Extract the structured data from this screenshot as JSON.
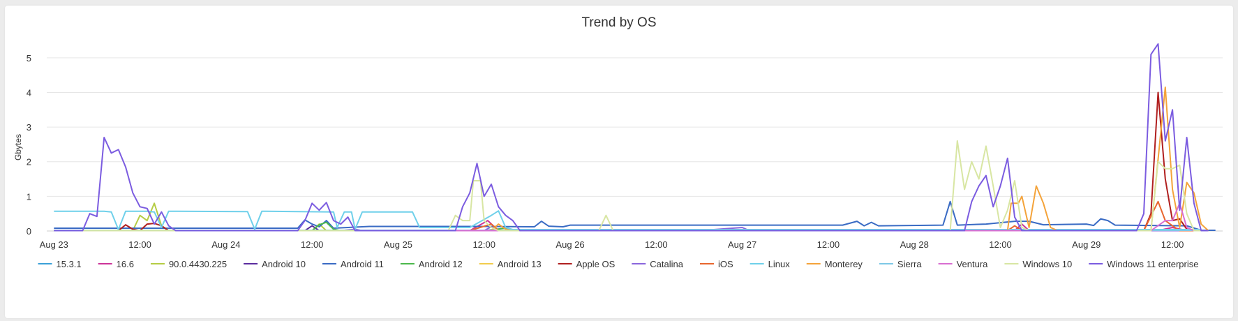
{
  "chart_data": {
    "type": "line",
    "title": "Trend by OS",
    "ylabel": "Gbytes",
    "xlabel": "",
    "ylim": [
      0,
      5.5
    ],
    "yticks": [
      0,
      1,
      2,
      3,
      4,
      5
    ],
    "x_unit": "hours since Aug 23 00:00",
    "x_ticks": [
      {
        "x": 0,
        "label": "Aug 23"
      },
      {
        "x": 12,
        "label": "12:00"
      },
      {
        "x": 24,
        "label": "Aug 24"
      },
      {
        "x": 36,
        "label": "12:00"
      },
      {
        "x": 48,
        "label": "Aug 25"
      },
      {
        "x": 60,
        "label": "12:00"
      },
      {
        "x": 72,
        "label": "Aug 26"
      },
      {
        "x": 84,
        "label": "12:00"
      },
      {
        "x": 96,
        "label": "Aug 27"
      },
      {
        "x": 108,
        "label": "12:00"
      },
      {
        "x": 120,
        "label": "Aug 28"
      },
      {
        "x": 132,
        "label": "12:00"
      },
      {
        "x": 144,
        "label": "Aug 29"
      },
      {
        "x": 156,
        "label": "12:00"
      }
    ],
    "xlim": [
      -1,
      163
    ],
    "grid": true,
    "legend_position": "bottom",
    "series": [
      {
        "name": "15.3.1",
        "color": "#3ba0d8",
        "points": [
          [
            0,
            0.02
          ],
          [
            40,
            0.02
          ],
          [
            80,
            0.02
          ],
          [
            120,
            0.02
          ],
          [
            160,
            0.02
          ]
        ]
      },
      {
        "name": "16.6",
        "color": "#cc3399",
        "points": [
          [
            0,
            0.01
          ],
          [
            58,
            0.01
          ],
          [
            60.5,
            0.3
          ],
          [
            62,
            0.01
          ],
          [
            134,
            0.01
          ],
          [
            135,
            0.2
          ],
          [
            136,
            0.01
          ],
          [
            154,
            0.01
          ],
          [
            156,
            0.1
          ],
          [
            158,
            0.01
          ],
          [
            160,
            0.01
          ]
        ]
      },
      {
        "name": "90.0.4430.225",
        "color": "#b5cc44",
        "points": [
          [
            0,
            0.01
          ],
          [
            11,
            0.01
          ],
          [
            12,
            0.45
          ],
          [
            13,
            0.3
          ],
          [
            14,
            0.8
          ],
          [
            15,
            0.15
          ],
          [
            16,
            0.01
          ],
          [
            36,
            0.01
          ],
          [
            37,
            0.2
          ],
          [
            38,
            0.01
          ],
          [
            160,
            0.01
          ]
        ]
      },
      {
        "name": "Android 10",
        "color": "#5a2c9e",
        "points": [
          [
            0,
            0.01
          ],
          [
            35,
            0.01
          ],
          [
            36,
            0.15
          ],
          [
            37,
            0.01
          ],
          [
            160,
            0.01
          ]
        ]
      },
      {
        "name": "Android 11",
        "color": "#3a6bc4",
        "points": [
          [
            0,
            0.08
          ],
          [
            20,
            0.08
          ],
          [
            34,
            0.08
          ],
          [
            35,
            0.32
          ],
          [
            36,
            0.2
          ],
          [
            37,
            0.12
          ],
          [
            38,
            0.3
          ],
          [
            39,
            0.08
          ],
          [
            44,
            0.13
          ],
          [
            60,
            0.13
          ],
          [
            67,
            0.12
          ],
          [
            68,
            0.28
          ],
          [
            69,
            0.14
          ],
          [
            71,
            0.12
          ],
          [
            72,
            0.17
          ],
          [
            100,
            0.17
          ],
          [
            110,
            0.17
          ],
          [
            112,
            0.28
          ],
          [
            113,
            0.15
          ],
          [
            114,
            0.25
          ],
          [
            115,
            0.15
          ],
          [
            124,
            0.17
          ],
          [
            125,
            0.85
          ],
          [
            126,
            0.17
          ],
          [
            130,
            0.2
          ],
          [
            134,
            0.28
          ],
          [
            136,
            0.28
          ],
          [
            138,
            0.18
          ],
          [
            144,
            0.2
          ],
          [
            145,
            0.16
          ],
          [
            146,
            0.35
          ],
          [
            147,
            0.3
          ],
          [
            148,
            0.17
          ],
          [
            158,
            0.15
          ],
          [
            160,
            0.02
          ],
          [
            162,
            0.02
          ]
        ]
      },
      {
        "name": "Android 12",
        "color": "#4cb84c",
        "points": [
          [
            0,
            0.01
          ],
          [
            36,
            0.01
          ],
          [
            37,
            0.18
          ],
          [
            38,
            0.25
          ],
          [
            39,
            0.05
          ],
          [
            40,
            0.01
          ],
          [
            60,
            0.01
          ],
          [
            63,
            0.08
          ],
          [
            64,
            0.01
          ],
          [
            160,
            0.01
          ]
        ]
      },
      {
        "name": "Android 13",
        "color": "#f2cc4d",
        "points": [
          [
            0,
            0.01
          ],
          [
            160,
            0.01
          ]
        ]
      },
      {
        "name": "Apple OS",
        "color": "#b01f1f",
        "points": [
          [
            0,
            0.01
          ],
          [
            9,
            0.01
          ],
          [
            10,
            0.18
          ],
          [
            11,
            0.05
          ],
          [
            12,
            0.01
          ],
          [
            13,
            0.2
          ],
          [
            14,
            0.22
          ],
          [
            15,
            0.15
          ],
          [
            16,
            0.01
          ],
          [
            152,
            0.01
          ],
          [
            153,
            0.5
          ],
          [
            154,
            4.0
          ],
          [
            155,
            1.5
          ],
          [
            156,
            0.3
          ],
          [
            157,
            0.35
          ],
          [
            158,
            0.05
          ],
          [
            159,
            0.01
          ],
          [
            160,
            0.01
          ]
        ]
      },
      {
        "name": "Catalina",
        "color": "#8a66dd",
        "points": [
          [
            0,
            0.01
          ],
          [
            40,
            0.01
          ],
          [
            42,
            0.05
          ],
          [
            43,
            0.01
          ],
          [
            60,
            0.01
          ],
          [
            61,
            0.12
          ],
          [
            62,
            0.01
          ],
          [
            90,
            0.01
          ],
          [
            96,
            0.1
          ],
          [
            97,
            0.01
          ],
          [
            160,
            0.01
          ]
        ]
      },
      {
        "name": "iOS",
        "color": "#e8662e",
        "points": [
          [
            0,
            0.01
          ],
          [
            58,
            0.01
          ],
          [
            61,
            0.2
          ],
          [
            62,
            0.01
          ],
          [
            133,
            0.01
          ],
          [
            134,
            0.15
          ],
          [
            135,
            0.01
          ],
          [
            152,
            0.01
          ],
          [
            154,
            0.85
          ],
          [
            155,
            0.3
          ],
          [
            156,
            0.15
          ],
          [
            157,
            0.01
          ],
          [
            160,
            0.01
          ]
        ]
      },
      {
        "name": "Linux",
        "color": "#6fd0ea",
        "points": [
          [
            0,
            0.57
          ],
          [
            3,
            0.57
          ],
          [
            7,
            0.57
          ],
          [
            8,
            0.55
          ],
          [
            9,
            0.04
          ],
          [
            10,
            0.57
          ],
          [
            13,
            0.57
          ],
          [
            14,
            0.55
          ],
          [
            15,
            0.1
          ],
          [
            16,
            0.57
          ],
          [
            27,
            0.56
          ],
          [
            28,
            0.05
          ],
          [
            29,
            0.57
          ],
          [
            39,
            0.55
          ],
          [
            39.5,
            0.1
          ],
          [
            40.5,
            0.55
          ],
          [
            41.5,
            0.55
          ],
          [
            42,
            0.05
          ],
          [
            43,
            0.55
          ],
          [
            50,
            0.55
          ],
          [
            51,
            0.1
          ],
          [
            52,
            0.1
          ],
          [
            58,
            0.1
          ],
          [
            61,
            0.45
          ],
          [
            62,
            0.58
          ],
          [
            63,
            0.1
          ],
          [
            64,
            0.04
          ],
          [
            160,
            0.04
          ]
        ]
      },
      {
        "name": "Monterey",
        "color": "#f4a33a",
        "points": [
          [
            0,
            0.01
          ],
          [
            61,
            0.01
          ],
          [
            62,
            0.2
          ],
          [
            63,
            0.05
          ],
          [
            64,
            0.01
          ],
          [
            133,
            0.01
          ],
          [
            133.5,
            0.8
          ],
          [
            134.5,
            0.8
          ],
          [
            135,
            1.0
          ],
          [
            136,
            0.1
          ],
          [
            137,
            1.3
          ],
          [
            138,
            0.8
          ],
          [
            139,
            0.1
          ],
          [
            140,
            0.01
          ],
          [
            153,
            0.01
          ],
          [
            155,
            4.15
          ],
          [
            156,
            1.2
          ],
          [
            157,
            0.1
          ],
          [
            158,
            1.4
          ],
          [
            159,
            1.1
          ],
          [
            160,
            0.2
          ],
          [
            161,
            0.01
          ]
        ]
      },
      {
        "name": "Sierra",
        "color": "#7ec8e6",
        "points": [
          [
            0,
            0.02
          ],
          [
            160,
            0.02
          ]
        ]
      },
      {
        "name": "Ventura",
        "color": "#d96ed1",
        "points": [
          [
            0,
            0.01
          ],
          [
            153,
            0.01
          ],
          [
            155,
            0.3
          ],
          [
            156,
            0.3
          ],
          [
            157,
            0.8
          ],
          [
            158,
            0.1
          ],
          [
            159,
            0.01
          ],
          [
            160,
            0.01
          ]
        ]
      },
      {
        "name": "Windows 10",
        "color": "#d8e6a3",
        "points": [
          [
            0,
            0.01
          ],
          [
            55,
            0.01
          ],
          [
            56,
            0.45
          ],
          [
            57,
            0.3
          ],
          [
            58,
            0.3
          ],
          [
            58.5,
            1.45
          ],
          [
            59.5,
            1.45
          ],
          [
            60,
            0.3
          ],
          [
            61,
            0.1
          ],
          [
            62,
            0.01
          ],
          [
            76,
            0.01
          ],
          [
            77,
            0.45
          ],
          [
            78,
            0.01
          ],
          [
            125,
            0.01
          ],
          [
            126,
            2.6
          ],
          [
            127,
            1.2
          ],
          [
            128,
            2.0
          ],
          [
            129,
            1.5
          ],
          [
            130,
            2.45
          ],
          [
            131,
            1.3
          ],
          [
            132,
            0.1
          ],
          [
            133,
            0.6
          ],
          [
            134,
            1.45
          ],
          [
            135,
            0.1
          ],
          [
            136,
            0.01
          ],
          [
            153,
            0.01
          ],
          [
            154,
            2.0
          ],
          [
            155,
            1.8
          ],
          [
            156,
            1.8
          ],
          [
            157,
            1.9
          ],
          [
            158,
            0.5
          ],
          [
            159,
            0.01
          ],
          [
            160,
            0.01
          ]
        ]
      },
      {
        "name": "Windows 11 enterprise",
        "color": "#7b5ce0",
        "points": [
          [
            0,
            0.01
          ],
          [
            4,
            0.01
          ],
          [
            5,
            0.5
          ],
          [
            6,
            0.42
          ],
          [
            7,
            2.7
          ],
          [
            8,
            2.25
          ],
          [
            9,
            2.35
          ],
          [
            10,
            1.85
          ],
          [
            11,
            1.1
          ],
          [
            12,
            0.7
          ],
          [
            13,
            0.65
          ],
          [
            14,
            0.2
          ],
          [
            15,
            0.55
          ],
          [
            16,
            0.15
          ],
          [
            17,
            0.01
          ],
          [
            34,
            0.01
          ],
          [
            35,
            0.3
          ],
          [
            36,
            0.8
          ],
          [
            37,
            0.6
          ],
          [
            38,
            0.82
          ],
          [
            39,
            0.3
          ],
          [
            40,
            0.2
          ],
          [
            41,
            0.4
          ],
          [
            42,
            0.01
          ],
          [
            56,
            0.01
          ],
          [
            57,
            0.7
          ],
          [
            58,
            1.1
          ],
          [
            59,
            1.95
          ],
          [
            60,
            1.0
          ],
          [
            61,
            1.35
          ],
          [
            62,
            0.7
          ],
          [
            63,
            0.45
          ],
          [
            64,
            0.3
          ],
          [
            65,
            0.01
          ],
          [
            127,
            0.01
          ],
          [
            128,
            0.85
          ],
          [
            129,
            1.3
          ],
          [
            130,
            1.6
          ],
          [
            131,
            0.7
          ],
          [
            132,
            1.3
          ],
          [
            133,
            2.1
          ],
          [
            134,
            0.4
          ],
          [
            135,
            0.01
          ],
          [
            151,
            0.01
          ],
          [
            152,
            0.5
          ],
          [
            153,
            5.1
          ],
          [
            154,
            5.4
          ],
          [
            155,
            2.6
          ],
          [
            156,
            3.5
          ],
          [
            157,
            0.6
          ],
          [
            158,
            2.7
          ],
          [
            159,
            0.8
          ],
          [
            160,
            0.01
          ],
          [
            161,
            0.01
          ]
        ]
      }
    ]
  }
}
